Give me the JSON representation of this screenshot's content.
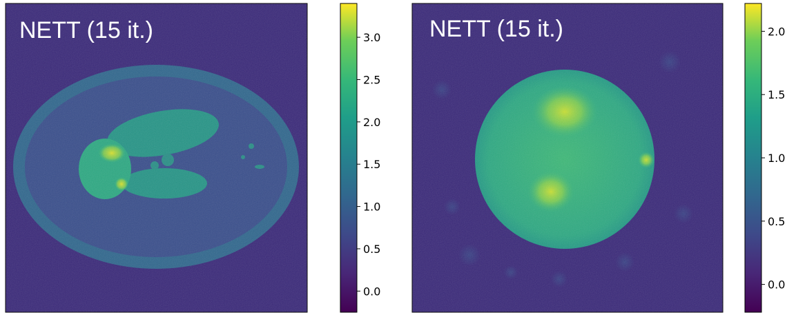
{
  "chart_data": [
    {
      "type": "heatmap",
      "title": "NETT (15 it.)",
      "colormap": "viridis",
      "colorbar": {
        "ticks": [
          "0.0",
          "0.5",
          "1.0",
          "1.5",
          "2.0",
          "2.5",
          "3.0"
        ],
        "range": [
          -0.25,
          3.4
        ]
      }
    },
    {
      "type": "heatmap",
      "title": "NETT (15 it.)",
      "colormap": "viridis",
      "colorbar": {
        "ticks": [
          "0.0",
          "0.5",
          "1.0",
          "1.5",
          "2.0"
        ],
        "range": [
          -0.22,
          2.22
        ]
      }
    }
  ],
  "colors": {
    "low": "#440154",
    "mid": "#21918c",
    "high": "#fde725",
    "background": "#3b2a7a"
  }
}
